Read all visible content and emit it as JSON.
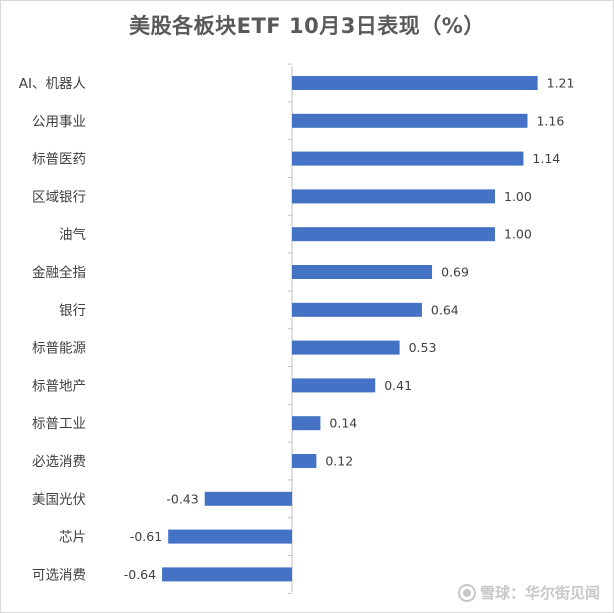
{
  "chart_data": {
    "type": "bar",
    "orientation": "horizontal",
    "title": "美股各板块ETF 10月3日表现（%）",
    "categories": [
      "AI、机器人",
      "公用事业",
      "标普医药",
      "区域银行",
      "油气",
      "金融全指",
      "银行",
      "标普能源",
      "标普地产",
      "标普工业",
      "必选消费",
      "美国光伏",
      "芯片",
      "可选消费"
    ],
    "values": [
      1.21,
      1.16,
      1.14,
      1.0,
      1.0,
      0.69,
      0.64,
      0.53,
      0.41,
      0.14,
      0.12,
      -0.43,
      -0.61,
      -0.64
    ],
    "value_labels": [
      "1.21",
      "1.16",
      "1.14",
      "1.00",
      "1.00",
      "0.69",
      "0.64",
      "0.53",
      "0.41",
      "0.14",
      "0.12",
      "-0.43",
      "-0.61",
      "-0.64"
    ],
    "xlim": [
      -0.68,
      1.35
    ],
    "bar_color": "#4472c4",
    "grid": false,
    "legend": "none"
  },
  "watermark": {
    "text": "雪球：华尔街见闻"
  },
  "colors": {
    "title": "#595959",
    "labels": "#404040",
    "axis": "#bfbfbf"
  }
}
